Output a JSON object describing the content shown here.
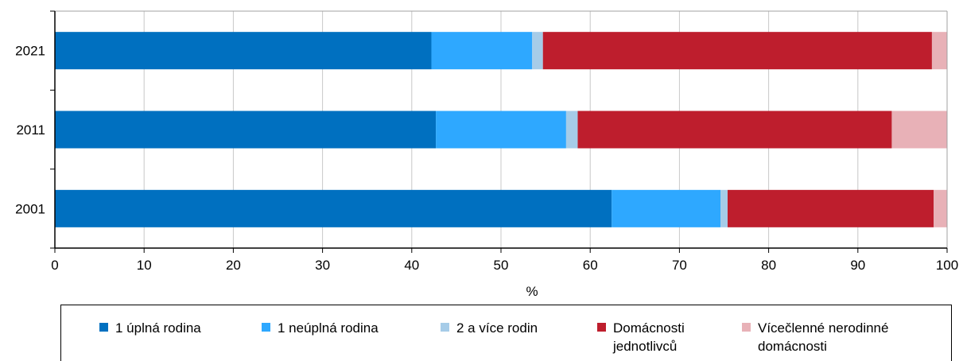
{
  "chart_data": {
    "type": "bar",
    "orientation": "horizontal",
    "stacked": true,
    "categories": [
      "2021",
      "2011",
      "2001"
    ],
    "series": [
      {
        "name": "1 úplná rodina",
        "color": "#0070C0",
        "values": [
          42.2,
          42.7,
          62.4
        ]
      },
      {
        "name": "1 neúplná rodina",
        "color": "#2EA8FF",
        "values": [
          11.3,
          14.6,
          12.2
        ]
      },
      {
        "name": "2 a více rodin",
        "color": "#A6CCE8",
        "values": [
          1.2,
          1.3,
          0.8
        ]
      },
      {
        "name": "Domácnosti\njednotlivců",
        "color": "#BE1E2D",
        "values": [
          43.6,
          35.2,
          23.1
        ]
      },
      {
        "name": "Vícečlenné nerodinné\ndomácnosti",
        "color": "#E8B1B7",
        "values": [
          1.7,
          6.2,
          1.5
        ]
      }
    ],
    "xlabel": "%",
    "xlim": [
      0,
      100
    ],
    "xticks": [
      "0",
      "10",
      "20",
      "30",
      "40",
      "50",
      "60",
      "70",
      "80",
      "90",
      "100"
    ],
    "grid": "vertical",
    "legend_position": "bottom"
  }
}
